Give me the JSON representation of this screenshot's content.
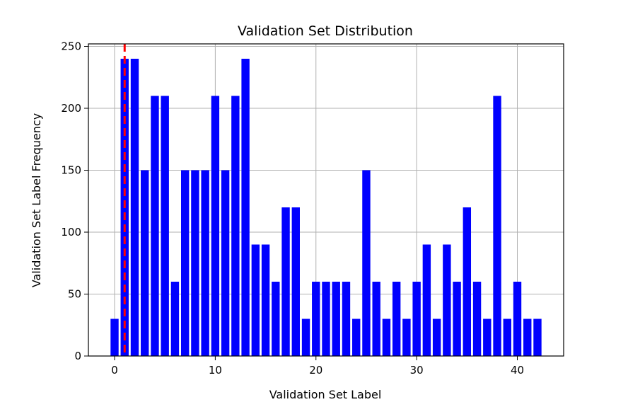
{
  "chart_data": {
    "type": "bar",
    "title": "Validation Set Distribution",
    "xlabel": "Validation Set Label",
    "ylabel": "Validation Set Label Frequency",
    "x": [
      0,
      1,
      2,
      3,
      4,
      5,
      6,
      7,
      8,
      9,
      10,
      11,
      12,
      13,
      14,
      15,
      16,
      17,
      18,
      19,
      20,
      21,
      22,
      23,
      24,
      25,
      26,
      27,
      28,
      29,
      30,
      31,
      32,
      33,
      34,
      35,
      36,
      37,
      38,
      39,
      40,
      41,
      42
    ],
    "values": [
      30,
      240,
      240,
      150,
      210,
      210,
      60,
      150,
      150,
      150,
      210,
      150,
      210,
      240,
      90,
      90,
      60,
      120,
      120,
      30,
      60,
      60,
      60,
      60,
      30,
      150,
      60,
      30,
      60,
      30,
      60,
      90,
      30,
      90,
      60,
      120,
      60,
      30,
      210,
      30,
      60,
      30,
      30
    ],
    "xlim": [
      -2.6,
      44.6
    ],
    "ylim": [
      0,
      252
    ],
    "xticks": [
      0,
      10,
      20,
      30,
      40
    ],
    "yticks": [
      0,
      50,
      100,
      150,
      200,
      250
    ],
    "reference_line_x": 1,
    "grid": true,
    "colors": {
      "bar": "#0000ff",
      "reference_line": "#ff0000",
      "grid": "#b0b0b0"
    }
  }
}
